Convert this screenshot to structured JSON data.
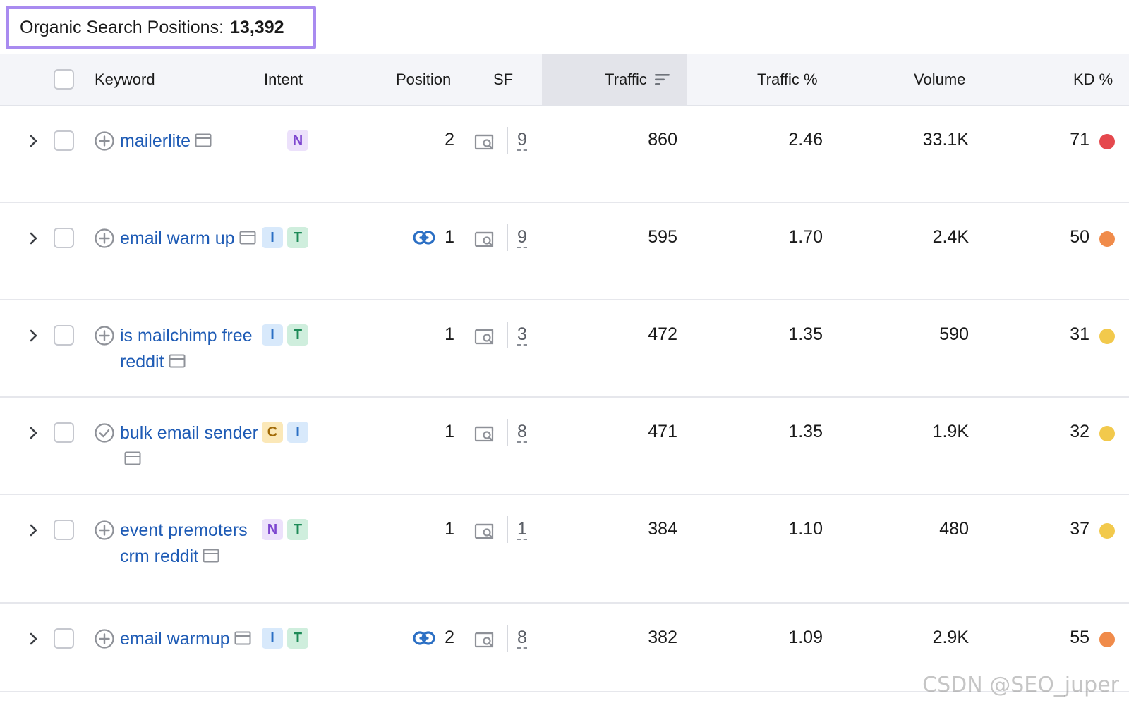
{
  "header": {
    "label": "Organic Search Positions:",
    "count": "13,392"
  },
  "columns": {
    "keyword": "Keyword",
    "intent": "Intent",
    "position": "Position",
    "sf": "SF",
    "traffic": "Traffic",
    "traffic_pct": "Traffic %",
    "volume": "Volume",
    "kd": "KD %"
  },
  "rows": [
    {
      "keyword": "mailerlite",
      "keyword_icon": "plus-circle-icon",
      "intents": [
        "N"
      ],
      "has_link": false,
      "position": "2",
      "sf": "9",
      "traffic": "860",
      "traffic_pct": "2.46",
      "volume": "33.1K",
      "kd": "71",
      "kd_color": "#e5484d"
    },
    {
      "keyword": "email warm up",
      "keyword_icon": "plus-circle-icon",
      "intents": [
        "I",
        "T"
      ],
      "has_link": true,
      "position": "1",
      "sf": "9",
      "traffic": "595",
      "traffic_pct": "1.70",
      "volume": "2.4K",
      "kd": "50",
      "kd_color": "#f08b4a"
    },
    {
      "keyword": "is mailchimp free reddit",
      "keyword_icon": "plus-circle-icon",
      "intents": [
        "I",
        "T"
      ],
      "has_link": false,
      "position": "1",
      "sf": "3",
      "traffic": "472",
      "traffic_pct": "1.35",
      "volume": "590",
      "kd": "31",
      "kd_color": "#f2c94c"
    },
    {
      "keyword": "bulk email sender",
      "keyword_icon": "check-circle-icon",
      "intents": [
        "C",
        "I"
      ],
      "has_link": false,
      "position": "1",
      "sf": "8",
      "traffic": "471",
      "traffic_pct": "1.35",
      "volume": "1.9K",
      "kd": "32",
      "kd_color": "#f2c94c"
    },
    {
      "keyword": "event premoters crm reddit",
      "keyword_icon": "plus-circle-icon",
      "intents": [
        "N",
        "T"
      ],
      "has_link": false,
      "position": "1",
      "sf": "1",
      "traffic": "384",
      "traffic_pct": "1.10",
      "volume": "480",
      "kd": "37",
      "kd_color": "#f2c94c"
    },
    {
      "keyword": "email warmup",
      "keyword_icon": "plus-circle-icon",
      "intents": [
        "I",
        "T"
      ],
      "has_link": true,
      "position": "2",
      "sf": "8",
      "traffic": "382",
      "traffic_pct": "1.09",
      "volume": "2.9K",
      "kd": "55",
      "kd_color": "#f08b4a"
    }
  ],
  "watermark": "CSDN @SEO_juper",
  "colors": {
    "highlight_border": "#a98bf0",
    "keyword_link": "#1e5bb5",
    "header_bg": "#f4f5f9"
  }
}
